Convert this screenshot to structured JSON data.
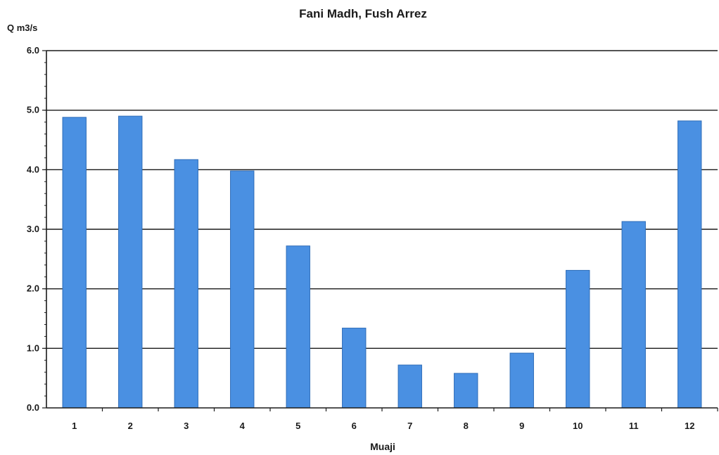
{
  "chart_data": {
    "type": "bar",
    "title": "Fani Madh, Fush Arrez",
    "ylabel": "Q m3/s",
    "xlabel": "Muaji",
    "categories": [
      "1",
      "2",
      "3",
      "4",
      "5",
      "6",
      "7",
      "8",
      "9",
      "10",
      "11",
      "12"
    ],
    "values": [
      4.88,
      4.9,
      4.17,
      3.98,
      2.72,
      1.34,
      0.72,
      0.58,
      0.92,
      2.31,
      3.13,
      4.82
    ],
    "ylim": [
      0,
      6
    ],
    "yticks": [
      "0.0",
      "1.0",
      "2.0",
      "3.0",
      "4.0",
      "5.0",
      "6.0"
    ],
    "grid": true,
    "colors": {
      "bar": "#4a90e2",
      "bar_edge": "#2f6db8",
      "grid": "#1a1a1a",
      "text": "#1a1a1a"
    }
  }
}
